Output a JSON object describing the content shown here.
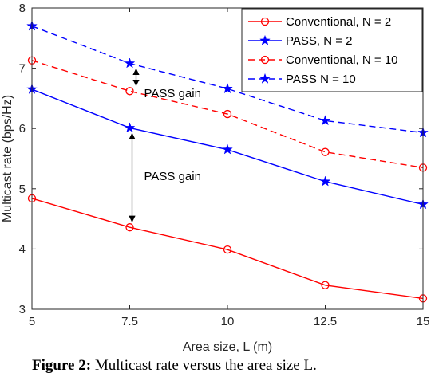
{
  "chart_data": {
    "type": "line",
    "xlabel": "Area size, L (m)",
    "ylabel": "Multicast rate (bps/Hz)",
    "x": [
      5,
      7.5,
      10,
      12.5,
      15
    ],
    "xticks": [
      "5",
      "7.5",
      "10",
      "12.5",
      "15"
    ],
    "yticks": [
      "3",
      "4",
      "5",
      "6",
      "7",
      "8"
    ],
    "xlim": [
      5,
      15
    ],
    "ylim": [
      3,
      8
    ],
    "grid": false,
    "legend_position": "top-right",
    "series": [
      {
        "name": "Conventional, N = 2",
        "values": [
          4.84,
          4.36,
          3.99,
          3.4,
          3.18
        ],
        "color": "#ff0000",
        "dash": "solid",
        "marker": "circle"
      },
      {
        "name": "PASS, N = 2",
        "values": [
          6.65,
          6.01,
          5.65,
          5.12,
          4.74
        ],
        "color": "#0000ff",
        "dash": "solid",
        "marker": "star"
      },
      {
        "name": "Conventional, N = 10",
        "values": [
          7.13,
          6.62,
          6.24,
          5.61,
          5.35
        ],
        "color": "#ff0000",
        "dash": "dashed",
        "marker": "circle"
      },
      {
        "name": "PASS N = 10",
        "values": [
          7.7,
          7.08,
          6.66,
          6.13,
          5.93
        ],
        "color": "#0000ff",
        "dash": "dashed",
        "marker": "star"
      }
    ],
    "annotations": [
      {
        "text": "PASS gain",
        "x": 7.5,
        "y_from": 6.62,
        "y_to": 7.08
      },
      {
        "text": "PASS gain",
        "x": 7.5,
        "y_from": 4.36,
        "y_to": 6.01
      }
    ]
  },
  "caption": {
    "label": "Figure 2:",
    "text": "Multicast rate versus the area size L."
  }
}
